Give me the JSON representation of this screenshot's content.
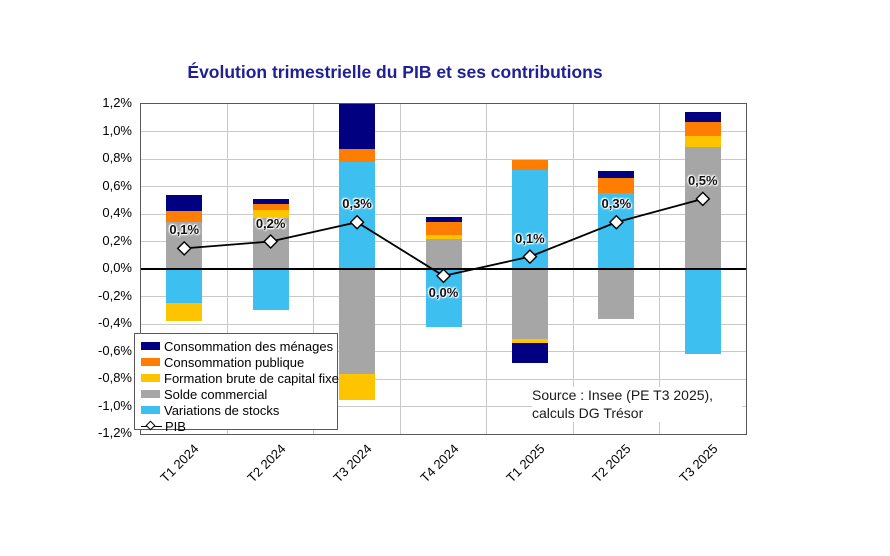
{
  "title": "Évolution trimestrielle du PIB et ses contributions",
  "source": {
    "line1": "Source : Insee (PE T3 2025),",
    "line2": "calculs DG Trésor"
  },
  "colors": {
    "title": "#1f1f96",
    "menages": "#000080",
    "publique": "#ff7d00",
    "fbcf": "#ffc400",
    "solde": "#a6a6a6",
    "stocks": "#3dbfef",
    "pib_line": "#000000",
    "gridline": "#c9c9c9"
  },
  "chart_data": {
    "type": "bar",
    "subtype": "stacked-bars-with-line",
    "title": "Évolution trimestrielle du PIB et ses contributions",
    "categories": [
      "T1 2024",
      "T2 2024",
      "T3 2024",
      "T4 2024",
      "T1 2025",
      "T2 2025",
      "T3 2025"
    ],
    "series": [
      {
        "name": "Consommation des ménages",
        "color": "#000080",
        "values": [
          0.12,
          0.04,
          0.42,
          0.04,
          -0.14,
          0.05,
          0.07
        ]
      },
      {
        "name": "Consommation publique",
        "color": "#ff7d00",
        "values": [
          0.08,
          0.04,
          0.09,
          0.09,
          0.07,
          0.11,
          0.1
        ]
      },
      {
        "name": "Formation brute de capital fixe",
        "color": "#ffc400",
        "values": [
          -0.13,
          0.06,
          -0.19,
          0.03,
          -0.03,
          0.0,
          0.08
        ]
      },
      {
        "name": "Solde commercial",
        "color": "#a6a6a6",
        "values": [
          0.34,
          0.37,
          -0.76,
          0.22,
          -0.51,
          -0.36,
          0.89
        ]
      },
      {
        "name": "Variations de stocks",
        "color": "#3dbfef",
        "values": [
          -0.25,
          -0.3,
          0.78,
          -0.42,
          0.72,
          0.55,
          -0.62
        ]
      }
    ],
    "line_series": {
      "name": "PIB",
      "values": [
        0.15,
        0.2,
        0.34,
        -0.05,
        0.09,
        0.34,
        0.51
      ],
      "labels": [
        "0,1%",
        "0,2%",
        "0,3%",
        "0,0%",
        "0,1%",
        "0,3%",
        "0,5%"
      ],
      "label_side": [
        "above",
        "above",
        "above",
        "below",
        "above",
        "above",
        "above"
      ]
    },
    "ylim": [
      -1.2,
      1.2
    ],
    "ytick_step": 0.2,
    "ytick_labels": [
      "1,2%",
      "1,0%",
      "0,8%",
      "0,6%",
      "0,4%",
      "0,2%",
      "0,0%",
      "-0,2%",
      "-0,4%",
      "-0,6%",
      "-0,8%",
      "-1,0%",
      "-1,2%"
    ],
    "grid": true,
    "legend_position": "inside-bottom-left",
    "stack_note": "positives stack upward, negatives downward; series stacked from zero outward in reverse legend order"
  }
}
